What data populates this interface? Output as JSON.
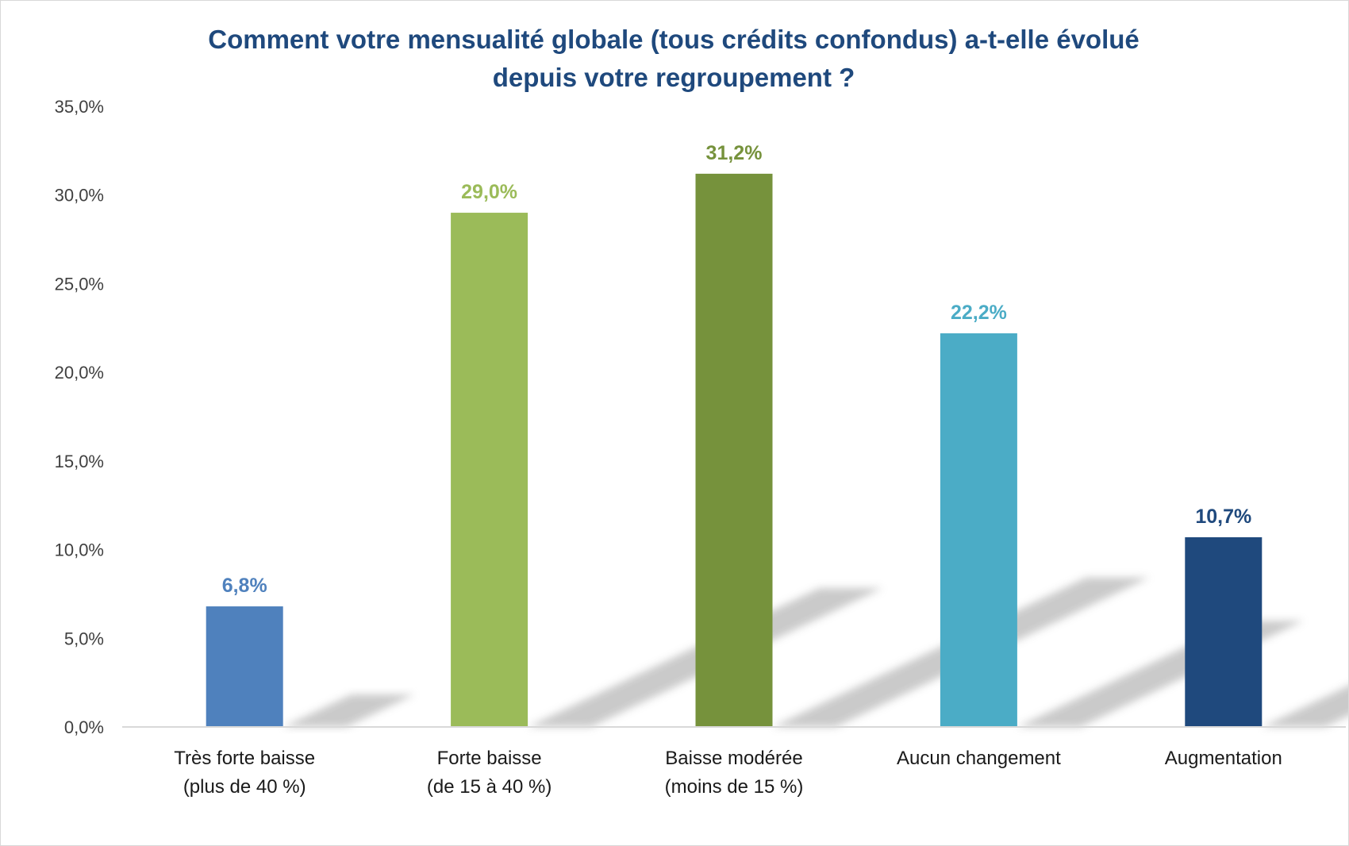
{
  "chart_data": {
    "type": "bar",
    "title_lines": [
      "Comment votre mensualité globale (tous crédits confondus) a-t-elle évolué",
      "depuis votre regroupement ?"
    ],
    "categories": [
      [
        "Très forte baisse",
        "(plus de 40 %)"
      ],
      [
        "Forte baisse",
        "(de 15 à 40 %)"
      ],
      [
        "Baisse modérée",
        "(moins de 15 %)"
      ],
      [
        "Aucun changement"
      ],
      [
        "Augmentation"
      ]
    ],
    "values": [
      6.8,
      29.0,
      31.2,
      22.2,
      10.7
    ],
    "value_labels": [
      "6,8%",
      "29,0%",
      "31,2%",
      "22,2%",
      "10,7%"
    ],
    "bar_colors": [
      "#4f81bd",
      "#9bbb59",
      "#76923c",
      "#4bacc6",
      "#1f497d"
    ],
    "ylim": [
      0,
      35
    ],
    "yticks": [
      0,
      5,
      10,
      15,
      20,
      25,
      30,
      35
    ],
    "ytick_labels": [
      "0,0%",
      "5,0%",
      "10,0%",
      "15,0%",
      "20,0%",
      "25,0%",
      "30,0%",
      "35,0%"
    ],
    "grid": false,
    "legend": "none",
    "colors": {
      "title": "#1f497d",
      "axis_text": "#404040",
      "axis_line": "#d9d9d9",
      "shadow": "#c8c8c8"
    }
  }
}
